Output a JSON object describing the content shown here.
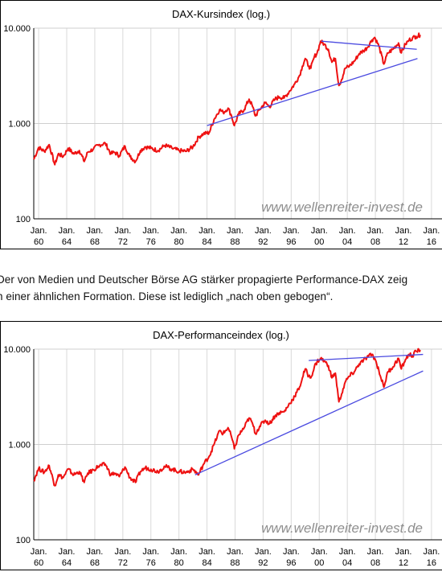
{
  "captions": {
    "line1": "Der  von Medien und Deutscher Börse AG stärker propagierte Performance-DAX zeig",
    "line2": "n einer ähnlichen Formation. Diese ist lediglich „nach oben gebogen“."
  },
  "chart_data": [
    {
      "type": "line",
      "title": "DAX-Kursindex (log.)",
      "watermark": "www.wellenreiter-invest.de",
      "xlabel": "",
      "ylabel": "",
      "y_scale": "log",
      "ylim": [
        100,
        10000
      ],
      "y_ticks": [
        {
          "value": 100,
          "label": "100"
        },
        {
          "value": 1000,
          "label": "1.000"
        },
        {
          "value": 10000,
          "label": "10.000"
        }
      ],
      "xlim": [
        1959.3,
        2017.5
      ],
      "x_ticks": [
        {
          "value": 1960,
          "month": "Jan.",
          "year": "60"
        },
        {
          "value": 1964,
          "month": "Jan.",
          "year": "64"
        },
        {
          "value": 1968,
          "month": "Jan.",
          "year": "68"
        },
        {
          "value": 1972,
          "month": "Jan.",
          "year": "72"
        },
        {
          "value": 1976,
          "month": "Jan.",
          "year": "76"
        },
        {
          "value": 1980,
          "month": "Jan.",
          "year": "80"
        },
        {
          "value": 1984,
          "month": "Jan.",
          "year": "84"
        },
        {
          "value": 1988,
          "month": "Jan.",
          "year": "88"
        },
        {
          "value": 1992,
          "month": "Jan.",
          "year": "92"
        },
        {
          "value": 1996,
          "month": "Jan.",
          "year": "96"
        },
        {
          "value": 2000,
          "month": "Jan.",
          "year": "00"
        },
        {
          "value": 2004,
          "month": "Jan.",
          "year": "04"
        },
        {
          "value": 2008,
          "month": "Jan.",
          "year": "08"
        },
        {
          "value": 2012,
          "month": "Jan.",
          "year": "12"
        },
        {
          "value": 2016,
          "month": "Jan.",
          "year": "16"
        }
      ],
      "grid": true,
      "line_color": "#ee1111",
      "trendline_color": "#4a4ae0",
      "series": [
        {
          "x": [
            1959.3,
            1960.0,
            1960.8,
            1961.5,
            1962.3,
            1962.8,
            1963.5,
            1964.2,
            1965.0,
            1965.8,
            1966.5,
            1967.0,
            1967.8,
            1968.5,
            1969.5,
            1970.3,
            1970.8,
            1971.5,
            1972.3,
            1973.0,
            1973.8,
            1974.5,
            1975.2,
            1976.0,
            1977.0,
            1978.0,
            1979.0,
            1980.0,
            1981.0,
            1982.0,
            1982.8,
            1983.5,
            1984.3,
            1985.0,
            1985.8,
            1986.3,
            1987.0,
            1987.5,
            1987.9,
            1988.5,
            1989.3,
            1990.0,
            1990.5,
            1990.9,
            1991.5,
            1992.3,
            1992.9,
            1993.7,
            1994.3,
            1995.0,
            1995.8,
            1996.5,
            1997.2,
            1997.6,
            1998.0,
            1998.5,
            1998.8,
            1999.3,
            1999.7,
            2000.2,
            2000.7,
            2001.3,
            2001.8,
            2002.3,
            2002.8,
            2003.2,
            2003.7,
            2004.3,
            2005.0,
            2005.7,
            2006.3,
            2006.8,
            2007.5,
            2007.9,
            2008.5,
            2009.2,
            2009.8,
            2010.5,
            2011.3,
            2011.7,
            2012.3,
            2012.8,
            2013.3,
            2013.8,
            2014.4
          ],
          "y": [
            420,
            560,
            510,
            600,
            370,
            480,
            450,
            550,
            480,
            520,
            400,
            500,
            540,
            590,
            620,
            480,
            500,
            460,
            580,
            450,
            400,
            520,
            570,
            550,
            520,
            590,
            550,
            520,
            510,
            570,
            720,
            780,
            800,
            1100,
            1400,
            1300,
            1450,
            1200,
            950,
            1250,
            1400,
            1800,
            1500,
            1200,
            1400,
            1650,
            1500,
            1800,
            1900,
            1850,
            2200,
            2600,
            3200,
            4000,
            4800,
            4000,
            3800,
            5000,
            5500,
            7300,
            6800,
            6000,
            4400,
            4800,
            2500,
            2900,
            3800,
            4000,
            4500,
            5400,
            5800,
            6200,
            7500,
            8000,
            6500,
            4200,
            5500,
            6000,
            7000,
            5500,
            6800,
            7500,
            7900,
            8200,
            8500
          ]
        }
      ],
      "trendlines": [
        {
          "x": [
            2000.3,
            2013.9
          ],
          "y": [
            7300,
            6000
          ]
        },
        {
          "x": [
            1984.0,
            2014.0
          ],
          "y": [
            950,
            4800
          ]
        }
      ]
    },
    {
      "type": "line",
      "title": "DAX-Performanceindex (log.)",
      "watermark": "www.wellenreiter-invest.de",
      "xlabel": "",
      "ylabel": "",
      "y_scale": "log",
      "ylim": [
        100,
        10000
      ],
      "y_ticks": [
        {
          "value": 100,
          "label": "100"
        },
        {
          "value": 1000,
          "label": "1.000"
        },
        {
          "value": 10000,
          "label": "10.000"
        }
      ],
      "xlim": [
        1959.3,
        2017.5
      ],
      "x_ticks": [
        {
          "value": 1960,
          "month": "Jan.",
          "year": "60"
        },
        {
          "value": 1964,
          "month": "Jan.",
          "year": "64"
        },
        {
          "value": 1968,
          "month": "Jan.",
          "year": "68"
        },
        {
          "value": 1972,
          "month": "Jan.",
          "year": "72"
        },
        {
          "value": 1976,
          "month": "Jan.",
          "year": "76"
        },
        {
          "value": 1980,
          "month": "Jan.",
          "year": "80"
        },
        {
          "value": 1984,
          "month": "Jan.",
          "year": "84"
        },
        {
          "value": 1988,
          "month": "Jan.",
          "year": "88"
        },
        {
          "value": 1992,
          "month": "Jan.",
          "year": "92"
        },
        {
          "value": 1996,
          "month": "Jan.",
          "year": "96"
        },
        {
          "value": 2000,
          "month": "Jan.",
          "year": "00"
        },
        {
          "value": 2004,
          "month": "Jan.",
          "year": "04"
        },
        {
          "value": 2008,
          "month": "Jan.",
          "year": "08"
        },
        {
          "value": 2012,
          "month": "Jan.",
          "year": "12"
        },
        {
          "value": 2016,
          "month": "Jan.",
          "year": "16"
        }
      ],
      "grid": true,
      "line_color": "#ee1111",
      "trendline_color": "#4a4ae0",
      "series": [
        {
          "x": [
            1959.3,
            1960.0,
            1960.8,
            1961.5,
            1962.3,
            1962.8,
            1963.5,
            1964.2,
            1965.0,
            1965.8,
            1966.5,
            1967.0,
            1967.8,
            1968.5,
            1969.5,
            1970.3,
            1970.8,
            1971.5,
            1972.3,
            1973.0,
            1973.8,
            1974.5,
            1975.2,
            1976.0,
            1977.0,
            1978.0,
            1979.0,
            1980.0,
            1981.0,
            1982.0,
            1982.8,
            1983.5,
            1984.3,
            1985.0,
            1985.8,
            1986.3,
            1987.0,
            1987.5,
            1987.9,
            1988.5,
            1989.3,
            1990.0,
            1990.5,
            1990.9,
            1991.5,
            1992.3,
            1992.9,
            1993.7,
            1994.3,
            1995.0,
            1995.8,
            1996.5,
            1997.2,
            1997.6,
            1998.0,
            1998.5,
            1998.8,
            1999.3,
            1999.7,
            2000.2,
            2000.7,
            2001.3,
            2001.8,
            2002.3,
            2002.8,
            2003.2,
            2003.7,
            2004.3,
            2005.0,
            2005.7,
            2006.3,
            2006.8,
            2007.5,
            2007.9,
            2008.5,
            2009.2,
            2009.8,
            2010.5,
            2011.3,
            2011.7,
            2012.3,
            2012.8,
            2013.3,
            2013.8,
            2014.4
          ],
          "y": [
            420,
            560,
            510,
            600,
            370,
            480,
            450,
            550,
            480,
            520,
            400,
            500,
            540,
            590,
            620,
            480,
            500,
            460,
            580,
            450,
            400,
            520,
            570,
            550,
            520,
            590,
            550,
            520,
            510,
            550,
            480,
            620,
            750,
            1000,
            1400,
            1300,
            1500,
            1200,
            900,
            1250,
            1500,
            1900,
            1650,
            1300,
            1550,
            1800,
            1650,
            2000,
            2150,
            2200,
            2700,
            3200,
            4000,
            5000,
            6200,
            5200,
            5000,
            6500,
            7400,
            8000,
            7500,
            6700,
            5000,
            5600,
            2800,
            3400,
            4500,
            5200,
            5800,
            7000,
            7600,
            8200,
            8800,
            8000,
            6000,
            4000,
            5800,
            6500,
            8000,
            6200,
            7800,
            8800,
            8500,
            9500,
            9800
          ]
        }
      ],
      "trendlines": [
        {
          "x": [
            1998.5,
            2014.8
          ],
          "y": [
            7600,
            8800
          ]
        },
        {
          "x": [
            1982.3,
            2014.8
          ],
          "y": [
            480,
            5900
          ]
        }
      ]
    }
  ]
}
